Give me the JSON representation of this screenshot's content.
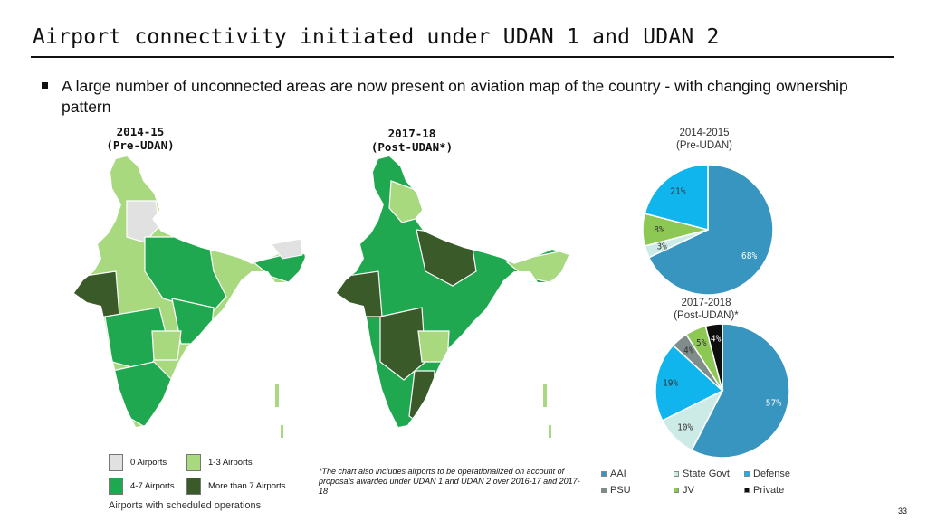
{
  "slide": {
    "title": "Airport connectivity initiated under UDAN 1 and UDAN 2",
    "bullet": "A large number of unconnected areas are now present on aviation map of the country  - with changing ownership pattern",
    "page_number": "33"
  },
  "maps": {
    "left_heading": [
      "2014-15",
      "(Pre-UDAN)"
    ],
    "right_heading": [
      "2017-18",
      "(Post-UDAN*)"
    ],
    "legend": [
      {
        "label": "0 Airports",
        "color": "#e1e1e1"
      },
      {
        "label": "1-3 Airports",
        "color": "#a9d97f"
      },
      {
        "label": "4-7 Airports",
        "color": "#1fa84f"
      },
      {
        "label": "More than 7 Airports",
        "color": "#3b5a2a"
      }
    ],
    "caption": "Airports with scheduled operations",
    "footnote": "*The chart also includes airports to be operationalized on account of proposals awarded under UDAN 1 and UDAN 2 over 2016-17 and 2017-18"
  },
  "chart_data": [
    {
      "type": "pie",
      "title": [
        "2014-2015",
        "(Pre-UDAN)"
      ],
      "labels": [
        "AAI",
        "State Govt.",
        "PSU",
        "JV",
        "Defense"
      ],
      "values": [
        68,
        3,
        0,
        8,
        21
      ],
      "display_labels": [
        "68%",
        "3%",
        "",
        "8%",
        "21%"
      ],
      "colors": [
        "#3795bf",
        "#cdebe6",
        "#7f8c8a",
        "#8dc854",
        "#10b5ee"
      ]
    },
    {
      "type": "pie",
      "title": [
        "2017-2018",
        "(Post-UDAN)*"
      ],
      "labels": [
        "AAI",
        "State Govt.",
        "Defense",
        "PSU",
        "JV",
        "Private"
      ],
      "values": [
        57,
        10,
        19,
        4,
        5,
        4
      ],
      "display_labels": [
        "57%",
        "10%",
        "19%",
        "4%",
        "5%",
        "4%"
      ],
      "colors": [
        "#3795bf",
        "#cdebe6",
        "#10b5ee",
        "#7f8c8a",
        "#8dc854",
        "#0d0d0d"
      ]
    }
  ],
  "pie_legend": [
    {
      "label": "AAI",
      "color": "#3795bf"
    },
    {
      "label": "State Govt.",
      "color": "#cdebe6"
    },
    {
      "label": "Defense",
      "color": "#10b5ee"
    },
    {
      "label": "PSU",
      "color": "#7f8c8a"
    },
    {
      "label": "JV",
      "color": "#8dc854"
    },
    {
      "label": "Private",
      "color": "#0d0d0d"
    }
  ]
}
